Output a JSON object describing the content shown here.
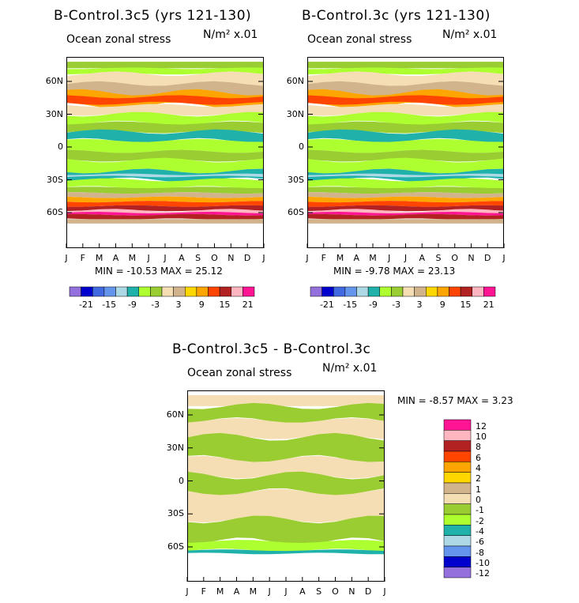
{
  "chart_data": [
    {
      "type": "heatmap",
      "title": "B-Control.3c5 (yrs 121-130)",
      "subtitle_left": "Ocean zonal stress",
      "units": "N/m² x.01",
      "x_tick_labels": [
        "J",
        "F",
        "M",
        "A",
        "M",
        "J",
        "J",
        "A",
        "S",
        "O",
        "N",
        "D",
        "J"
      ],
      "y_tick_labels": [
        "60N",
        "30N",
        "0",
        "30S",
        "60S"
      ],
      "y_values": [
        60,
        30,
        0,
        -30,
        -60
      ],
      "stats": "MIN = -10.53 MAX = 25.12",
      "min": -10.53,
      "max": 25.12,
      "colorbar_labels": [
        "-21",
        "-15",
        "-9",
        "-3",
        "3",
        "9",
        "15",
        "21"
      ]
    },
    {
      "type": "heatmap",
      "title": "B-Control.3c (yrs 121-130)",
      "subtitle_left": "Ocean zonal stress",
      "units": "N/m² x.01",
      "x_tick_labels": [
        "J",
        "F",
        "M",
        "A",
        "M",
        "J",
        "J",
        "A",
        "S",
        "O",
        "N",
        "D",
        "J"
      ],
      "y_tick_labels": [
        "60N",
        "30N",
        "0",
        "30S",
        "60S"
      ],
      "y_values": [
        60,
        30,
        0,
        -30,
        -60
      ],
      "stats": "MIN = -9.78 MAX = 23.13",
      "min": -9.78,
      "max": 23.13,
      "colorbar_labels": [
        "-21",
        "-15",
        "-9",
        "-3",
        "3",
        "9",
        "15",
        "21"
      ]
    },
    {
      "type": "heatmap",
      "title": "B-Control.3c5 - B-Control.3c",
      "subtitle_left": "Ocean zonal stress",
      "units": "N/m² x.01",
      "x_tick_labels": [
        "J",
        "F",
        "M",
        "A",
        "M",
        "J",
        "J",
        "A",
        "S",
        "O",
        "N",
        "D",
        "J"
      ],
      "y_tick_labels": [
        "60N",
        "30N",
        "0",
        "30S",
        "60S"
      ],
      "y_values": [
        60,
        30,
        0,
        -30,
        -60
      ],
      "stats": "MIN = -8.57 MAX = 3.23",
      "min": -8.57,
      "max": 3.23,
      "colorbar_labels": [
        "12",
        "10",
        "8",
        "6",
        "4",
        "2",
        "1",
        "0",
        "-1",
        "-2",
        "-4",
        "-6",
        "-8",
        "-10",
        "-12"
      ]
    }
  ],
  "colors": {
    "top_palette": [
      "#9370db",
      "#0000cd",
      "#4169e1",
      "#6495ed",
      "#add8e6",
      "#20b2aa",
      "#adff2f",
      "#9acd32",
      "#f5deb3",
      "#d2b48c",
      "#ffd700",
      "#ffa500",
      "#ff4500",
      "#b22222",
      "#ffb6c1",
      "#ff1493"
    ],
    "diff_palette": [
      "#ff1493",
      "#ffb6c1",
      "#b22222",
      "#ff4500",
      "#ffa500",
      "#ffd700",
      "#d2b48c",
      "#f5deb3",
      "#9acd32",
      "#adff2f",
      "#20b2aa",
      "#add8e6",
      "#6495ed",
      "#0000cd",
      "#9370db"
    ]
  }
}
